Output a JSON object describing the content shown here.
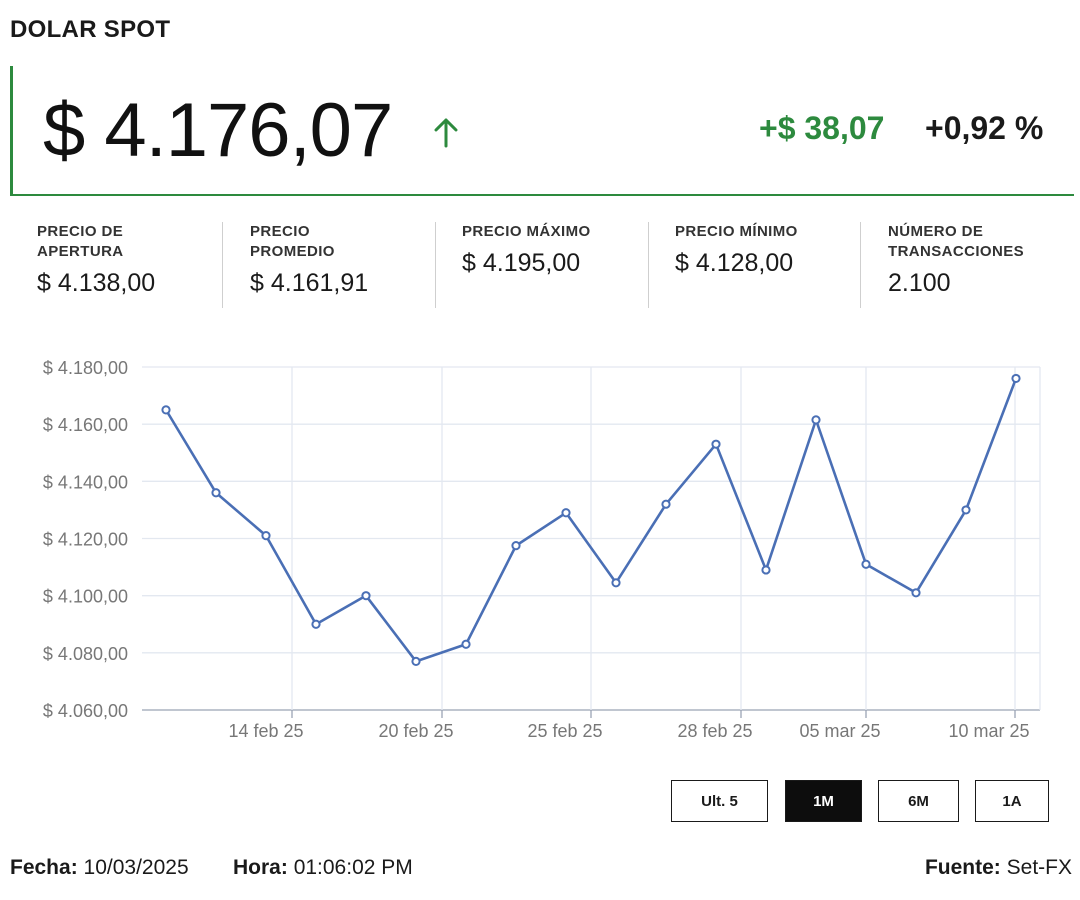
{
  "header": {
    "title": "DOLAR SPOT"
  },
  "quote": {
    "price": "$ 4.176,07",
    "direction": "up",
    "change": "+$ 38,07",
    "change_pct": "+0,92 %",
    "accent_color": "#2d8a3e"
  },
  "stats": [
    {
      "label": "PRECIO DE APERTURA",
      "value": "$ 4.138,00"
    },
    {
      "label": "PRECIO PROMEDIO",
      "value": "$ 4.161,91"
    },
    {
      "label": "PRECIO MÁXIMO",
      "value": "$ 4.195,00"
    },
    {
      "label": "PRECIO MÍNIMO",
      "value": "$ 4.128,00"
    },
    {
      "label": "NÚMERO DE TRANSACCIONES",
      "value": "2.100"
    }
  ],
  "chart_data": {
    "type": "line",
    "x_ticks": [
      "14 feb 25",
      "20 feb 25",
      "25 feb 25",
      "28 feb 25",
      "05 mar 25",
      "10 mar 25"
    ],
    "y_ticks": [
      "$ 4.060,00",
      "$ 4.080,00",
      "$ 4.100,00",
      "$ 4.120,00",
      "$ 4.140,00",
      "$ 4.160,00",
      "$ 4.180,00"
    ],
    "ylim": [
      4060,
      4180
    ],
    "grid": true,
    "line_color": "#4a6fb5",
    "values": [
      4165,
      4136,
      4121,
      4090,
      4100,
      4077,
      4083,
      4117.5,
      4129,
      4104.5,
      4132,
      4153,
      4109,
      4161.5,
      4111,
      4101,
      4130,
      4176
    ]
  },
  "range_buttons": [
    {
      "label": "Ult. 5",
      "active": false
    },
    {
      "label": "1M",
      "active": true
    },
    {
      "label": "6M",
      "active": false
    },
    {
      "label": "1A",
      "active": false
    }
  ],
  "footer": {
    "fecha_label": "Fecha:",
    "fecha": "10/03/2025",
    "hora_label": "Hora:",
    "hora": "01:06:02 PM",
    "fuente_label": "Fuente:",
    "fuente": "Set-FX"
  }
}
